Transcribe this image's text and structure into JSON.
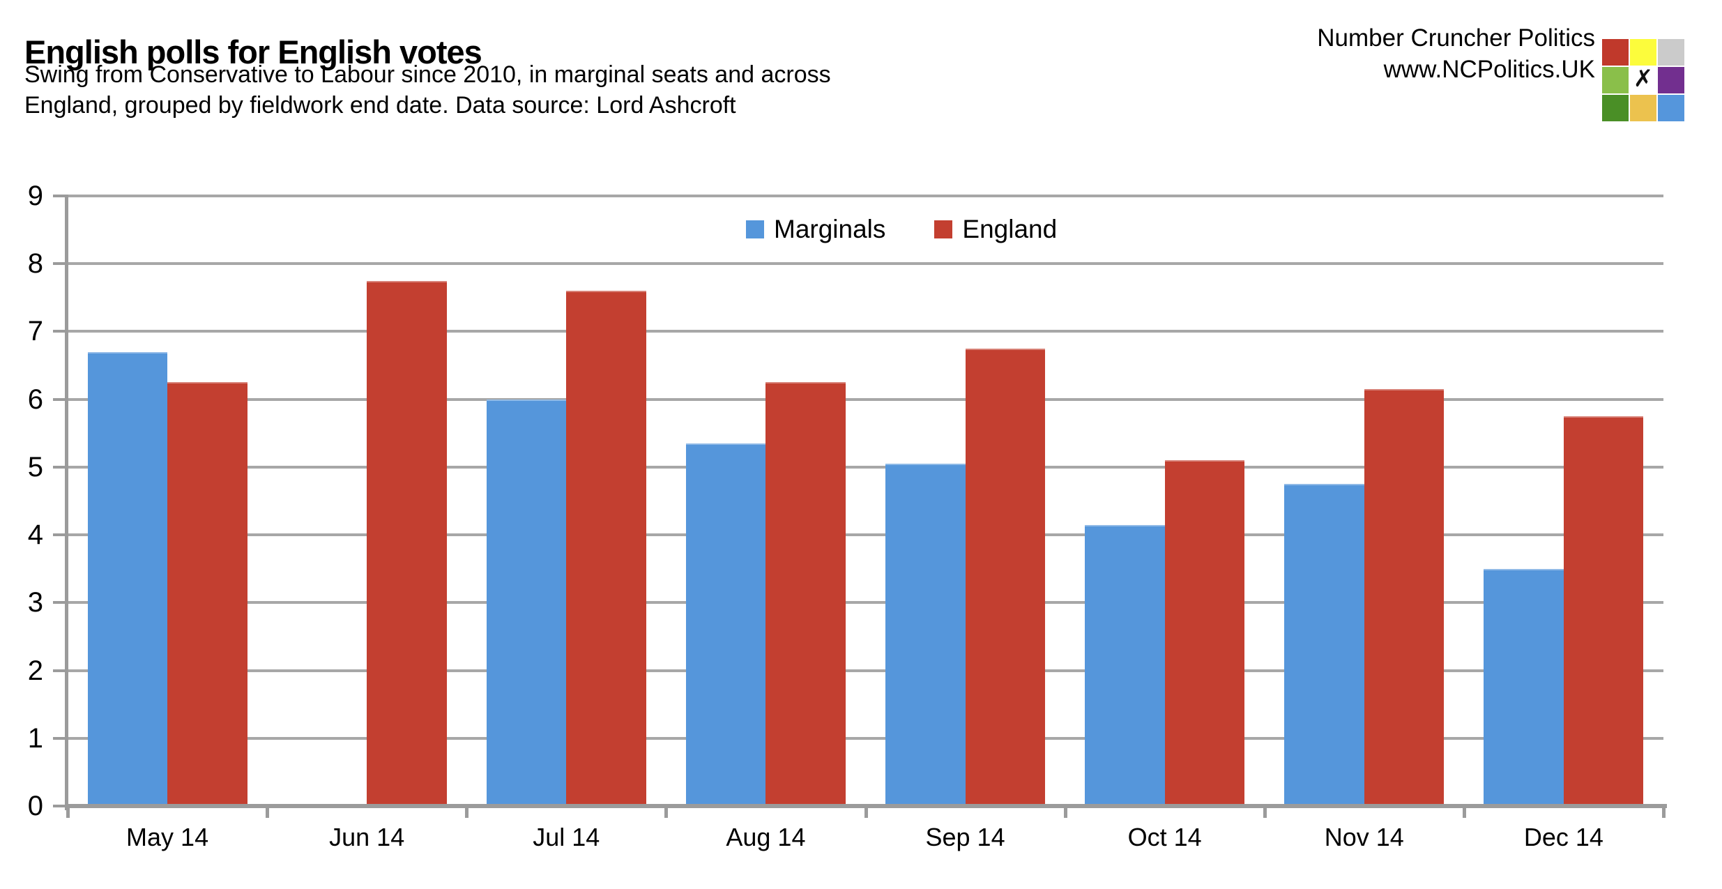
{
  "header": {
    "title": "English polls for English votes",
    "subtitle_line1": "Swing from Conservative to Labour since 2010, in marginal seats and across",
    "subtitle_line2": "England, grouped by fieldwork end date. Data source: Lord Ashcroft"
  },
  "brand": {
    "name": "Number Cruncher Politics",
    "url": "www.NCPolitics.UK",
    "logo": {
      "squares": [
        {
          "name": "red",
          "color": "#C0392B"
        },
        {
          "name": "yellow",
          "color": "#FCFC3C"
        },
        {
          "name": "gray",
          "color": "#CBCBCB"
        },
        {
          "name": "yellow-green",
          "color": "#8ABF4A"
        },
        {
          "name": "white-x",
          "color": "#FFFFFF",
          "glyph": "✗"
        },
        {
          "name": "purple",
          "color": "#722F8F"
        },
        {
          "name": "green",
          "color": "#4A8F26"
        },
        {
          "name": "gold",
          "color": "#ECC24E"
        },
        {
          "name": "blue",
          "color": "#5596DC"
        }
      ]
    }
  },
  "chart_data": {
    "type": "bar",
    "categories": [
      "May 14",
      "Jun 14",
      "Jul 14",
      "Aug 14",
      "Sep 14",
      "Oct 14",
      "Nov 14",
      "Dec 14"
    ],
    "series": [
      {
        "name": "Marginals",
        "color": "#5596DB",
        "values": [
          6.7,
          null,
          6.0,
          5.35,
          5.05,
          4.15,
          4.75,
          3.5
        ]
      },
      {
        "name": "England",
        "color": "#C33F30",
        "values": [
          6.25,
          7.75,
          7.6,
          6.25,
          6.75,
          5.1,
          6.15,
          5.75
        ]
      }
    ],
    "title": "English polls for English votes",
    "xlabel": "",
    "ylabel": "",
    "ylim": [
      0,
      9
    ],
    "ytick_step": 1,
    "grid": true,
    "gridline_color": "#A7A7A7",
    "axis_color": "#9B9B9B",
    "legend_position": "top-center"
  }
}
